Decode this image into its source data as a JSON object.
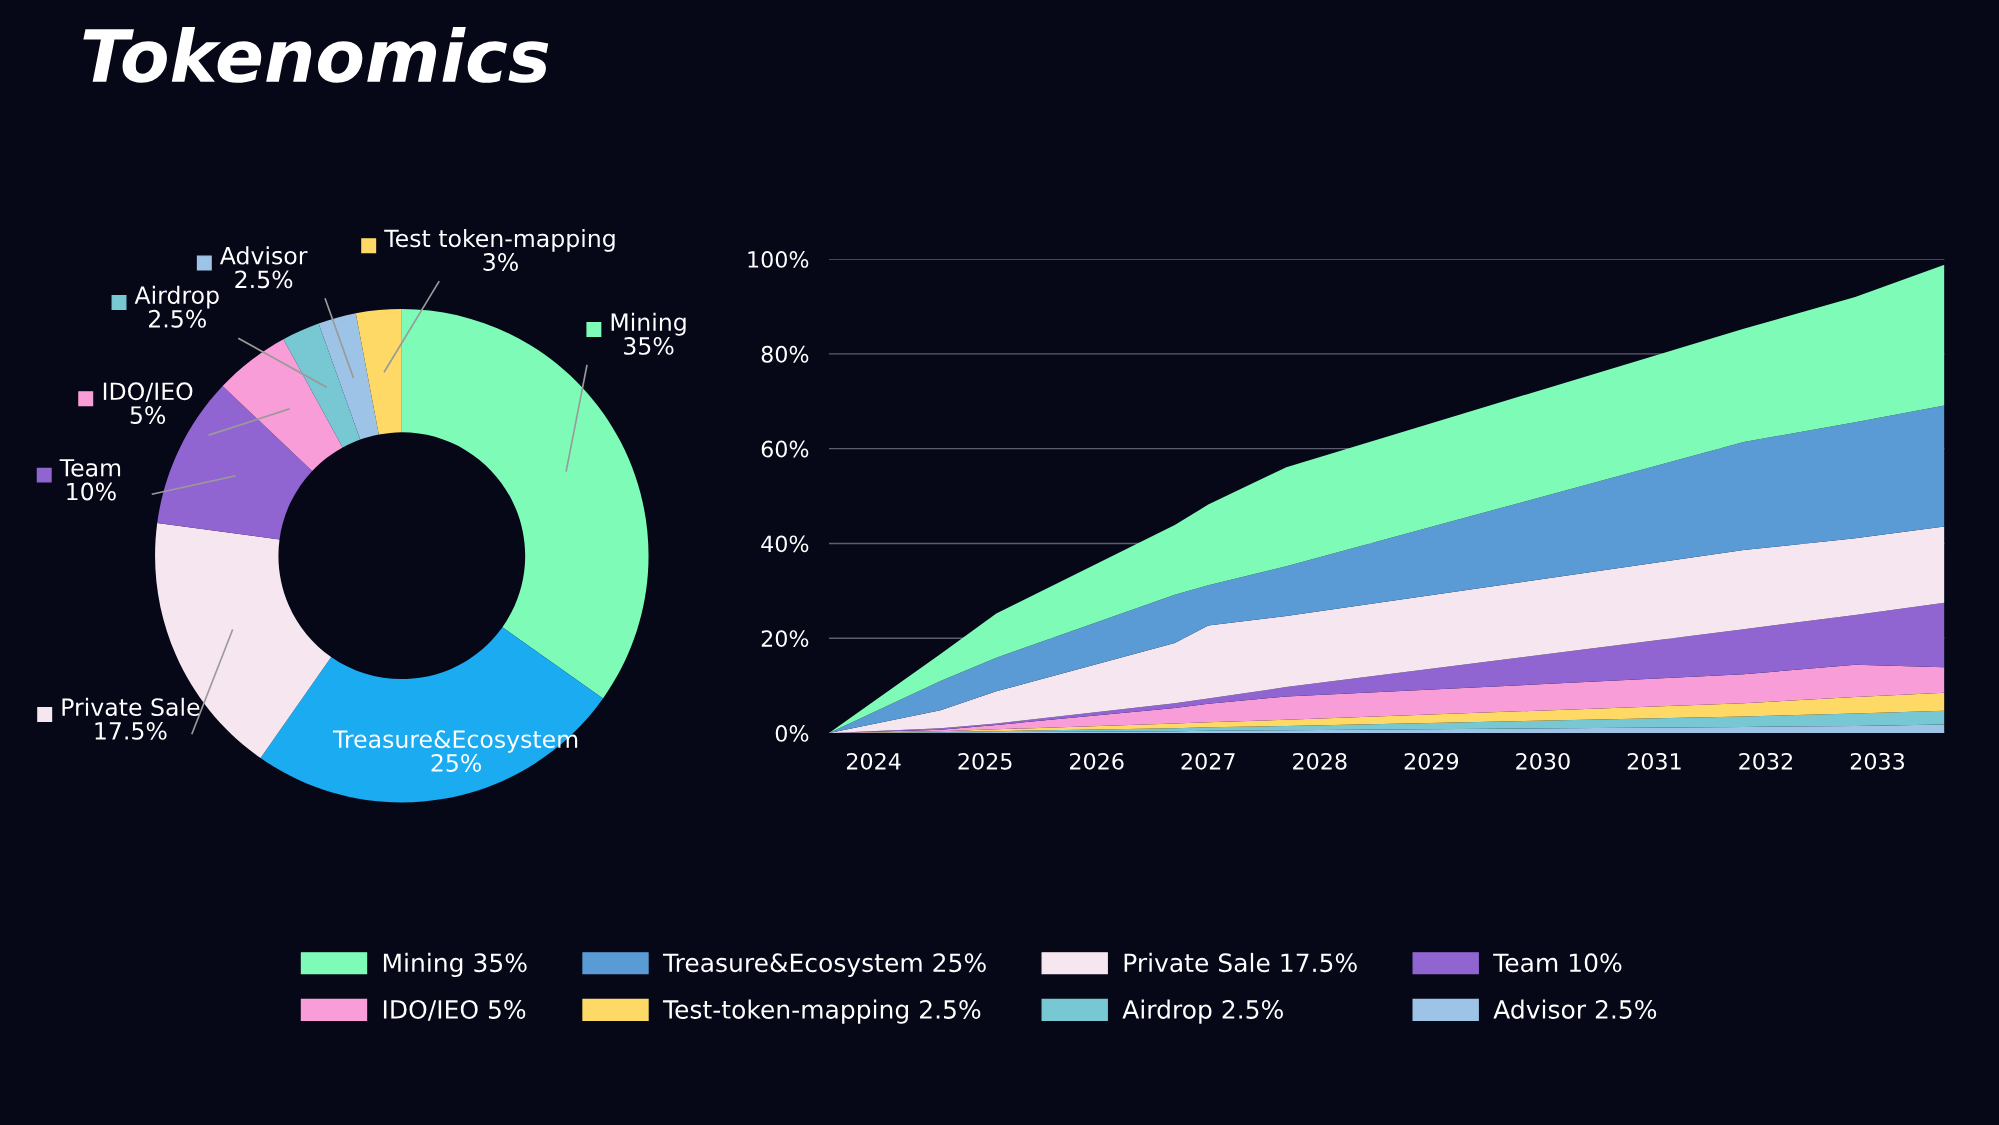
{
  "chart_data": [
    {
      "type": "donut",
      "title": "Tokenomics",
      "legend": "left",
      "categories": [
        "Mining",
        "Treasure&Ecosystem",
        "Private Sale",
        "Team",
        "IDO/IEO",
        "Airdrop",
        "Advisor",
        "Test token-mapping"
      ],
      "values": [
        35,
        25,
        17.5,
        10,
        5,
        2.5,
        2.5,
        3
      ],
      "value_labels": [
        "35%",
        "25%",
        "17.5%",
        "10%",
        "5%",
        "2.5%",
        "2.5%",
        "3%"
      ],
      "colors": [
        "#7ffbb8",
        "#1aabf0",
        "#f6e6ef",
        "#9065d1",
        "#f99dd8",
        "#78c8d4",
        "#9dc3e6",
        "#ffd966"
      ]
    },
    {
      "type": "area",
      "stacked": true,
      "legend": "bottom",
      "grid": "y",
      "x": [
        2023.6,
        2024.6,
        2025.1,
        2026.7,
        2027.0,
        2027.7,
        2031.8,
        2032.8,
        2033.6
      ],
      "xlim": [
        2023.6,
        2033.6
      ],
      "xticks": [
        2024,
        2025,
        2026,
        2027,
        2028,
        2029,
        2030,
        2031,
        2032,
        2033
      ],
      "ylim": [
        0,
        100
      ],
      "yticks": [
        {
          "value": 0,
          "label": "0%"
        },
        {
          "value": 20,
          "label": "20%"
        },
        {
          "value": 40,
          "label": "40%"
        },
        {
          "value": 60,
          "label": "60%"
        },
        {
          "value": 80,
          "label": "80%"
        },
        {
          "value": 100,
          "label": "100%"
        }
      ],
      "series": [
        {
          "name": "Advisor 2.5%",
          "color": "#9dc3e6",
          "values": [
            0,
            0.1,
            0.2,
            0.4,
            0.5,
            0.6,
            1.3,
            1.5,
            1.8
          ]
        },
        {
          "name": "Airdrop 2.5%",
          "color": "#78c8d4",
          "values": [
            0,
            0.1,
            0.2,
            0.6,
            0.7,
            0.9,
            2.2,
            2.6,
            2.9
          ]
        },
        {
          "name": "Test-token-mapping 2.5%",
          "color": "#ffd966",
          "values": [
            0,
            0.2,
            0.4,
            1.0,
            1.1,
            1.3,
            2.8,
            3.5,
            3.8
          ]
        },
        {
          "name": "IDO/IEO 5%",
          "color": "#f99dd8",
          "values": [
            0,
            0.3,
            0.9,
            3.3,
            3.9,
            4.9,
            6.1,
            6.8,
            5.4
          ]
        },
        {
          "name": "Team 10%",
          "color": "#9065d1",
          "values": [
            0,
            0.3,
            0.3,
            1.0,
            1.1,
            2.0,
            9.5,
            10.5,
            13.6
          ]
        },
        {
          "name": "Private Sale 17.5%",
          "color": "#f6e6ef",
          "values": [
            0,
            3.8,
            6.8,
            12.7,
            15.4,
            15.0,
            16.7,
            16.2,
            16.1
          ]
        },
        {
          "name": "Treasure&Ecosystem 25%",
          "color": "#5b9bd5",
          "values": [
            0,
            6.2,
            7.1,
            10.2,
            8.5,
            10.5,
            22.8,
            24.5,
            25.5
          ]
        },
        {
          "name": "Mining 35%",
          "color": "#7ffbb8",
          "values": [
            0,
            5.7,
            9.3,
            14.7,
            17.0,
            20.9,
            23.9,
            26.4,
            29.7
          ]
        }
      ]
    }
  ]
}
